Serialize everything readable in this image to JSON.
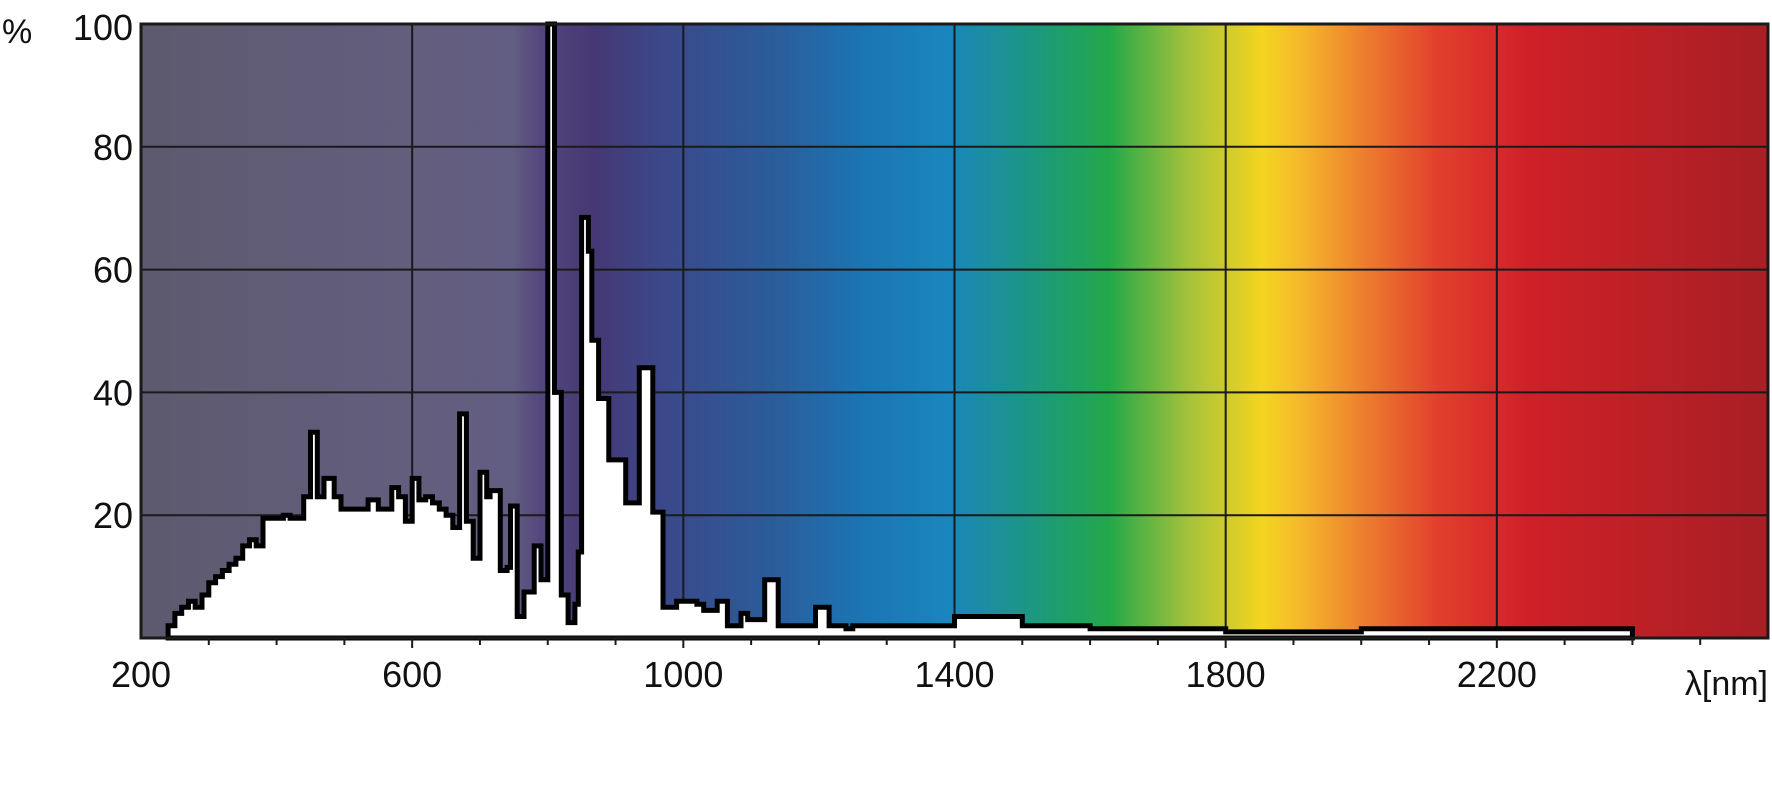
{
  "chart_data": {
    "type": "area",
    "title": "",
    "xlabel": "λ[nm]",
    "ylabel": "%",
    "xlim": [
      200,
      2600
    ],
    "ylim": [
      0,
      100
    ],
    "grid": true,
    "legend": "none",
    "x_ticks": [
      200,
      600,
      1000,
      1400,
      1800,
      2200
    ],
    "y_ticks": [
      20,
      40,
      60,
      80,
      100
    ],
    "series": [
      {
        "values": [
          [
            240,
            0.5
          ],
          [
            240,
            2
          ],
          [
            250,
            2
          ],
          [
            250,
            4
          ],
          [
            260,
            4
          ],
          [
            260,
            5
          ],
          [
            270,
            5
          ],
          [
            270,
            6
          ],
          [
            280,
            6
          ],
          [
            280,
            5
          ],
          [
            290,
            5
          ],
          [
            290,
            7
          ],
          [
            300,
            7
          ],
          [
            300,
            9
          ],
          [
            310,
            9
          ],
          [
            310,
            10
          ],
          [
            320,
            10
          ],
          [
            320,
            11
          ],
          [
            330,
            11
          ],
          [
            330,
            12
          ],
          [
            340,
            12
          ],
          [
            340,
            13
          ],
          [
            350,
            13
          ],
          [
            350,
            15
          ],
          [
            360,
            15
          ],
          [
            360,
            16
          ],
          [
            370,
            16
          ],
          [
            370,
            15
          ],
          [
            380,
            15
          ],
          [
            380,
            19.5
          ],
          [
            410,
            19.5
          ],
          [
            410,
            20
          ],
          [
            420,
            20
          ],
          [
            420,
            19.5
          ],
          [
            440,
            19.5
          ],
          [
            440,
            23
          ],
          [
            450,
            23
          ],
          [
            450,
            33.5
          ],
          [
            460,
            33.5
          ],
          [
            460,
            23
          ],
          [
            470,
            23
          ],
          [
            470,
            26
          ],
          [
            485,
            26
          ],
          [
            485,
            23
          ],
          [
            495,
            23
          ],
          [
            495,
            21
          ],
          [
            535,
            21
          ],
          [
            535,
            22.5
          ],
          [
            550,
            22.5
          ],
          [
            550,
            21
          ],
          [
            570,
            21
          ],
          [
            570,
            24.5
          ],
          [
            580,
            24.5
          ],
          [
            580,
            23
          ],
          [
            590,
            23
          ],
          [
            590,
            19
          ],
          [
            600,
            19
          ],
          [
            600,
            26
          ],
          [
            610,
            26
          ],
          [
            610,
            22.5
          ],
          [
            620,
            22.5
          ],
          [
            620,
            23
          ],
          [
            630,
            23
          ],
          [
            630,
            22
          ],
          [
            640,
            22
          ],
          [
            640,
            21
          ],
          [
            650,
            21
          ],
          [
            650,
            20
          ],
          [
            660,
            20
          ],
          [
            660,
            18
          ],
          [
            670,
            18
          ],
          [
            670,
            36.5
          ],
          [
            680,
            36.5
          ],
          [
            680,
            19
          ],
          [
            690,
            19
          ],
          [
            690,
            13
          ],
          [
            700,
            13
          ],
          [
            700,
            27
          ],
          [
            710,
            27
          ],
          [
            710,
            23
          ],
          [
            715,
            23
          ],
          [
            715,
            24
          ],
          [
            730,
            24
          ],
          [
            730,
            11
          ],
          [
            740,
            11
          ],
          [
            740,
            11.5
          ],
          [
            745,
            11.5
          ],
          [
            745,
            21.5
          ],
          [
            755,
            21.5
          ],
          [
            755,
            3.5
          ],
          [
            765,
            3.5
          ],
          [
            765,
            7.5
          ],
          [
            780,
            7.5
          ],
          [
            780,
            15
          ],
          [
            790,
            15
          ],
          [
            790,
            9.5
          ],
          [
            800,
            9.5
          ],
          [
            800,
            100
          ],
          [
            810,
            100
          ],
          [
            810,
            40
          ],
          [
            820,
            40
          ],
          [
            820,
            7
          ],
          [
            830,
            7
          ],
          [
            830,
            2.5
          ],
          [
            840,
            2.5
          ],
          [
            840,
            5.5
          ],
          [
            845,
            5.5
          ],
          [
            845,
            14
          ],
          [
            850,
            14
          ],
          [
            850,
            68.5
          ],
          [
            860,
            68.5
          ],
          [
            860,
            63
          ],
          [
            865,
            63
          ],
          [
            865,
            48.5
          ],
          [
            875,
            48.5
          ],
          [
            875,
            39
          ],
          [
            890,
            39
          ],
          [
            890,
            29
          ],
          [
            915,
            29
          ],
          [
            915,
            22
          ],
          [
            935,
            22
          ],
          [
            935,
            44
          ],
          [
            955,
            44
          ],
          [
            955,
            20.5
          ],
          [
            970,
            20.5
          ],
          [
            970,
            5
          ],
          [
            990,
            5
          ],
          [
            990,
            6
          ],
          [
            1020,
            6
          ],
          [
            1020,
            5.5
          ],
          [
            1030,
            5.5
          ],
          [
            1030,
            4.5
          ],
          [
            1050,
            4.5
          ],
          [
            1050,
            6
          ],
          [
            1065,
            6
          ],
          [
            1065,
            2
          ],
          [
            1085,
            2
          ],
          [
            1085,
            4
          ],
          [
            1095,
            4
          ],
          [
            1095,
            3
          ],
          [
            1120,
            3
          ],
          [
            1120,
            9.5
          ],
          [
            1140,
            9.5
          ],
          [
            1140,
            2
          ],
          [
            1195,
            2
          ],
          [
            1195,
            5
          ],
          [
            1215,
            5
          ],
          [
            1215,
            2
          ],
          [
            1240,
            2
          ],
          [
            1240,
            1.5
          ],
          [
            1250,
            1.5
          ],
          [
            1250,
            2
          ],
          [
            1400,
            2
          ],
          [
            1400,
            3.5
          ],
          [
            1500,
            3.5
          ],
          [
            1500,
            2
          ],
          [
            1600,
            2
          ],
          [
            1600,
            1.5
          ],
          [
            1800,
            1.5
          ],
          [
            1800,
            1
          ],
          [
            2000,
            1
          ],
          [
            2000,
            1.5
          ],
          [
            2400,
            1.5
          ],
          [
            2400,
            0.5
          ]
        ]
      }
    ]
  }
}
